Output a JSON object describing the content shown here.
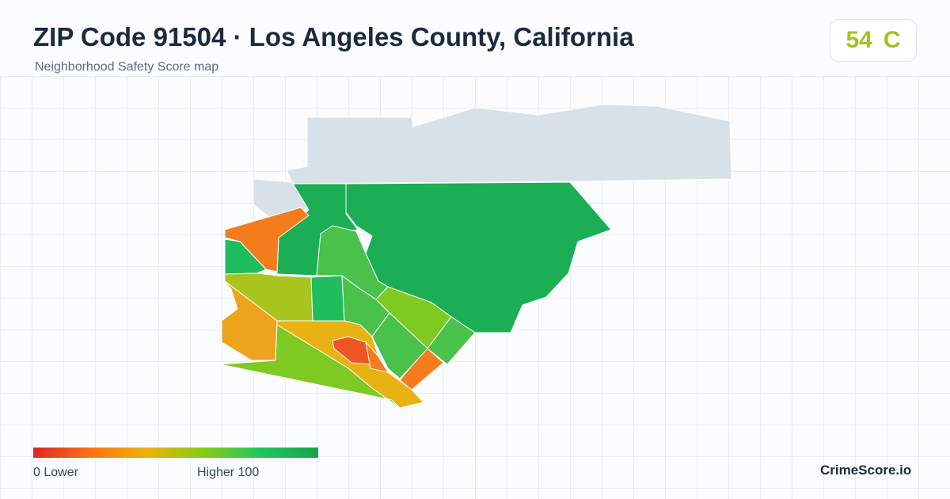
{
  "header": {
    "title": "ZIP Code 91504 · Los Angeles County, California",
    "subtitle": "Neighborhood Safety Score map"
  },
  "score": {
    "value": "54",
    "grade": "C",
    "color": "#a4c21c"
  },
  "legend": {
    "low_label": "0  Lower",
    "high_label": "Higher  100",
    "min": 0,
    "max": 100,
    "colors": [
      "#dc2626",
      "#f97316",
      "#eab308",
      "#84cc16",
      "#22c55e",
      "#16a34a"
    ]
  },
  "map": {
    "no_data_color": "#d9e1e8",
    "region_colors": {
      "red_orange": "#ee5524",
      "orange": "#f47c1c",
      "amber": "#eda31b",
      "gold": "#e8b214",
      "olive": "#a9c41f",
      "lime": "#7ec922",
      "green_light": "#49c14b",
      "green": "#1fbd5d",
      "green_dark": "#1bae54"
    }
  },
  "footer": {
    "brand": "CrimeScore.io"
  }
}
